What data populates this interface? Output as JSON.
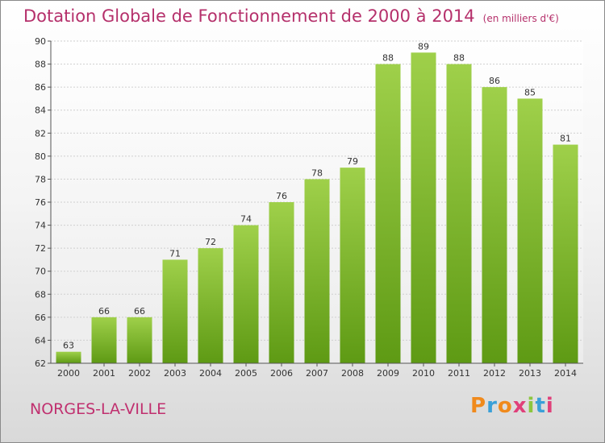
{
  "chart_data": {
    "type": "bar",
    "title": "Dotation Globale de Fonctionnement de 2000 à 2014",
    "subtitle": "(en milliers d'€)",
    "categories": [
      "2000",
      "2001",
      "2002",
      "2003",
      "2004",
      "2005",
      "2006",
      "2007",
      "2008",
      "2009",
      "2010",
      "2011",
      "2012",
      "2013",
      "2014"
    ],
    "values": [
      63,
      66,
      66,
      71,
      72,
      74,
      76,
      78,
      79,
      88,
      89,
      88,
      86,
      85,
      81
    ],
    "ylim": [
      62,
      90
    ],
    "yticks": [
      62,
      64,
      66,
      68,
      70,
      72,
      74,
      76,
      78,
      80,
      82,
      84,
      86,
      88,
      90
    ],
    "grid": true,
    "xlabel": "",
    "ylabel": ""
  },
  "footer": {
    "location": "NORGES-LA-VILLE"
  },
  "brand": {
    "letters": [
      "P",
      "r",
      "o",
      "x",
      "i",
      "t",
      "i"
    ],
    "colors": [
      "#f08a1c",
      "#3aa0d8",
      "#f08a1c",
      "#e0407a",
      "#8cc63f",
      "#3aa0d8",
      "#e0407a"
    ]
  },
  "colors": {
    "bar_top": "#9fd04a",
    "bar_bottom": "#5e9a14",
    "grid": "#cfcfcf",
    "axis": "#555555"
  }
}
